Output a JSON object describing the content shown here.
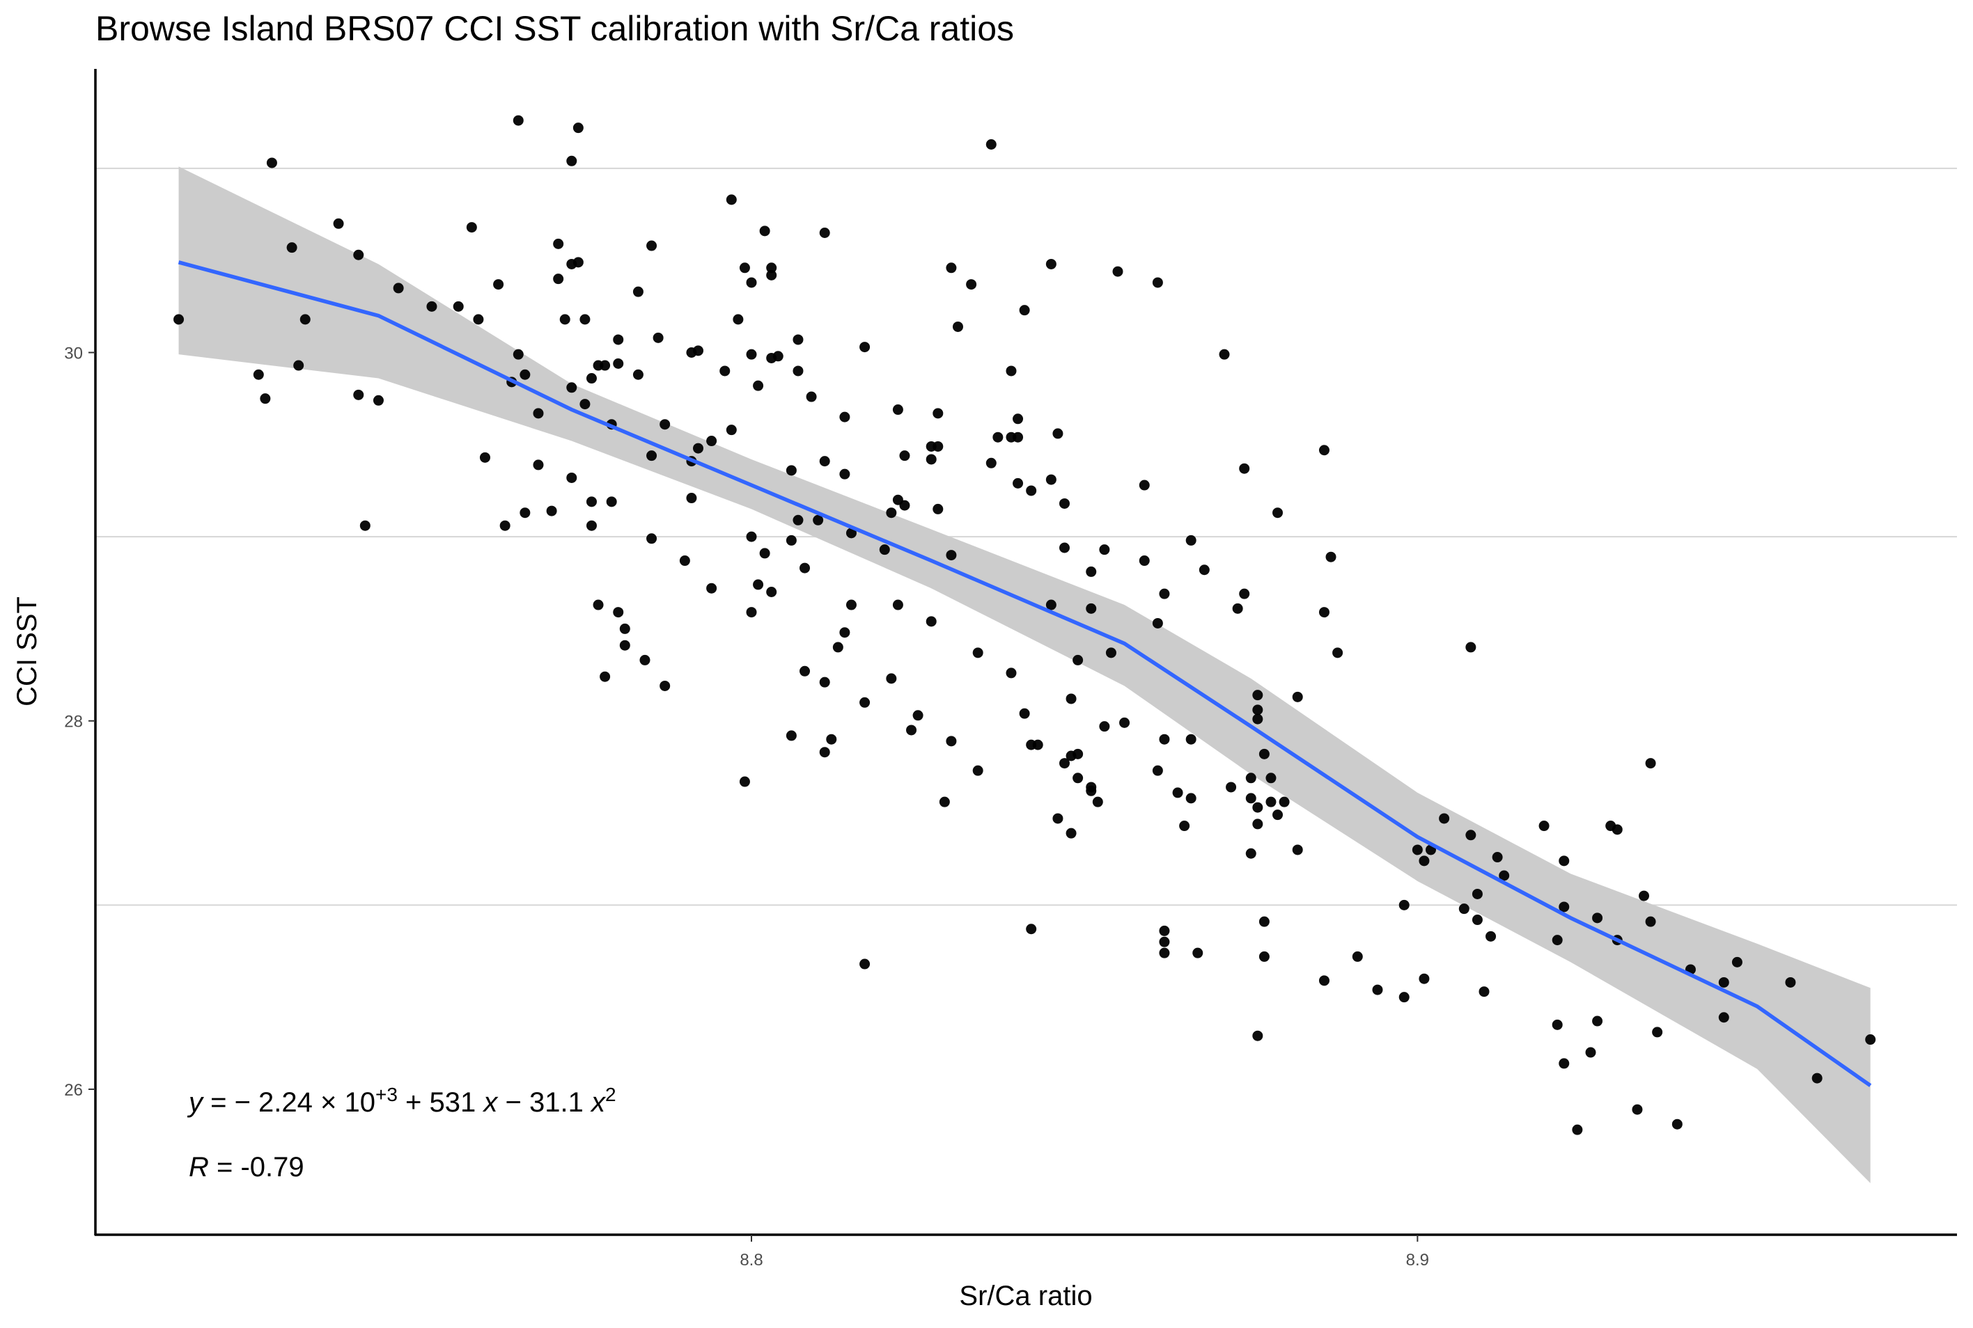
{
  "chart_data": {
    "type": "scatter",
    "title": "Browse Island BRS07 CCI SST calibration with Sr/Ca ratios",
    "x_label": "Sr/Ca ratio",
    "y_label": "CCI SST",
    "xlim": [
      8.7015,
      8.981
    ],
    "ylim": [
      25.21,
      31.54
    ],
    "xticks": [
      8.8,
      8.9
    ],
    "yticks": [
      26,
      28,
      30
    ],
    "grid_y": [
      27,
      29,
      31
    ],
    "color": "#000000",
    "x": [
      8.714,
      8.726,
      8.727,
      8.728,
      8.731,
      8.732,
      8.733,
      8.738,
      8.741,
      8.741,
      8.742,
      8.744,
      8.747,
      8.752,
      8.756,
      8.758,
      8.759,
      8.76,
      8.762,
      8.763,
      8.764,
      8.765,
      8.765,
      8.766,
      8.766,
      8.768,
      8.768,
      8.77,
      8.771,
      8.771,
      8.772,
      8.773,
      8.773,
      8.773,
      8.774,
      8.774,
      8.773,
      8.775,
      8.775,
      8.776,
      8.776,
      8.776,
      8.777,
      8.777,
      8.778,
      8.778,
      8.779,
      8.779,
      8.78,
      8.78,
      8.78,
      8.781,
      8.781,
      8.783,
      8.783,
      8.784,
      8.785,
      8.785,
      8.785,
      8.786,
      8.787,
      8.787,
      8.79,
      8.791,
      8.791,
      8.791,
      8.792,
      8.792,
      8.794,
      8.794,
      8.796,
      8.797,
      8.797,
      8.798,
      8.799,
      8.799,
      8.8,
      8.8,
      8.8,
      8.8,
      8.801,
      8.801,
      8.802,
      8.802,
      8.803,
      8.803,
      8.803,
      8.803,
      8.804,
      8.806,
      8.806,
      8.806,
      8.807,
      8.807,
      8.807,
      8.808,
      8.808,
      8.809,
      8.81,
      8.811,
      8.811,
      8.811,
      8.811,
      8.812,
      8.813,
      8.814,
      8.814,
      8.814,
      8.815,
      8.815,
      8.817,
      8.817,
      8.817,
      8.82,
      8.821,
      8.821,
      8.822,
      8.822,
      8.822,
      8.823,
      8.823,
      8.824,
      8.825,
      8.827,
      8.827,
      8.827,
      8.828,
      8.828,
      8.828,
      8.829,
      8.83,
      8.83,
      8.83,
      8.831,
      8.833,
      8.834,
      8.834,
      8.836,
      8.836,
      8.837,
      8.839,
      8.839,
      8.839,
      8.84,
      8.84,
      8.84,
      8.841,
      8.841,
      8.842,
      8.842,
      8.842,
      8.843,
      8.845,
      8.845,
      8.845,
      8.846,
      8.846,
      8.847,
      8.847,
      8.847,
      8.848,
      8.848,
      8.848,
      8.849,
      8.849,
      8.849,
      8.851,
      8.851,
      8.851,
      8.851,
      8.852,
      8.853,
      8.853,
      8.854,
      8.855,
      8.856,
      8.859,
      8.859,
      8.861,
      8.861,
      8.861,
      8.862,
      8.862,
      8.862,
      8.862,
      8.862,
      8.864,
      8.865,
      8.866,
      8.866,
      8.866,
      8.867,
      8.868,
      8.871,
      8.872,
      8.873,
      8.874,
      8.874,
      8.875,
      8.875,
      8.875,
      8.876,
      8.876,
      8.876,
      8.876,
      8.876,
      8.876,
      8.877,
      8.877,
      8.877,
      8.878,
      8.878,
      8.879,
      8.879,
      8.88,
      8.882,
      8.882,
      8.886,
      8.886,
      8.886,
      8.887,
      8.888,
      8.891,
      8.894,
      8.898,
      8.898,
      8.9,
      8.901,
      8.901,
      8.902,
      8.904,
      8.907,
      8.908,
      8.908,
      8.909,
      8.909,
      8.91,
      8.911,
      8.912,
      8.913,
      8.919,
      8.921,
      8.921,
      8.922,
      8.922,
      8.922,
      8.924,
      8.926,
      8.927,
      8.927,
      8.929,
      8.93,
      8.93,
      8.933,
      8.934,
      8.935,
      8.935,
      8.936,
      8.939,
      8.941,
      8.946,
      8.946,
      8.948,
      8.956,
      8.96,
      8.968
    ],
    "values": [
      30.18,
      29.88,
      29.75,
      31.03,
      30.57,
      29.93,
      30.18,
      30.7,
      30.53,
      29.77,
      29.06,
      29.74,
      30.35,
      30.25,
      30.25,
      30.68,
      30.18,
      29.43,
      30.37,
      29.06,
      29.84,
      31.26,
      29.99,
      29.88,
      29.13,
      29.67,
      29.39,
      29.14,
      30.59,
      30.4,
      30.18,
      29.32,
      31.04,
      30.48,
      31.22,
      30.49,
      29.81,
      30.18,
      29.72,
      29.86,
      29.19,
      29.06,
      29.93,
      28.63,
      28.24,
      29.93,
      29.61,
      29.19,
      29.94,
      28.59,
      30.07,
      28.5,
      28.41,
      30.33,
      29.88,
      28.33,
      30.58,
      29.44,
      28.99,
      30.08,
      28.19,
      29.61,
      28.87,
      30.0,
      29.21,
      29.41,
      30.01,
      29.48,
      29.52,
      28.72,
      29.9,
      30.83,
      29.58,
      30.18,
      30.46,
      27.67,
      29.99,
      28.59,
      30.38,
      29.0,
      29.82,
      28.74,
      30.66,
      28.91,
      30.46,
      30.42,
      29.97,
      28.7,
      29.98,
      29.36,
      28.98,
      27.92,
      30.07,
      29.9,
      29.09,
      28.83,
      28.27,
      29.76,
      29.09,
      30.65,
      29.41,
      28.21,
      27.83,
      27.9,
      28.4,
      29.65,
      29.34,
      28.48,
      29.02,
      28.63,
      30.03,
      28.1,
      26.68,
      28.93,
      28.23,
      29.13,
      29.69,
      29.2,
      28.63,
      29.17,
      29.44,
      27.95,
      28.03,
      29.49,
      29.42,
      28.54,
      29.15,
      29.67,
      29.49,
      27.56,
      30.46,
      28.9,
      27.89,
      30.14,
      30.37,
      28.37,
      27.73,
      31.13,
      29.4,
      29.54,
      29.9,
      29.54,
      28.26,
      29.64,
      29.54,
      29.29,
      30.23,
      28.04,
      29.25,
      27.87,
      26.87,
      27.87,
      30.48,
      29.31,
      28.63,
      29.56,
      27.47,
      29.18,
      28.94,
      27.77,
      27.81,
      28.12,
      27.39,
      28.33,
      27.82,
      27.69,
      28.81,
      28.61,
      27.64,
      27.62,
      27.56,
      27.97,
      28.93,
      28.37,
      30.44,
      27.99,
      29.28,
      28.87,
      28.53,
      30.38,
      27.73,
      28.69,
      27.9,
      26.86,
      26.8,
      26.74,
      27.61,
      27.43,
      28.98,
      27.9,
      27.58,
      26.74,
      28.82,
      29.99,
      27.64,
      28.61,
      29.37,
      28.69,
      27.69,
      27.58,
      27.28,
      28.14,
      28.01,
      27.53,
      26.29,
      28.06,
      27.44,
      26.91,
      27.82,
      26.72,
      27.69,
      27.56,
      29.13,
      27.49,
      27.56,
      27.3,
      28.13,
      29.47,
      28.59,
      26.59,
      28.89,
      28.37,
      26.72,
      26.54,
      27.0,
      26.5,
      27.3,
      27.24,
      26.6,
      27.3,
      27.47,
      26.98,
      28.4,
      27.38,
      27.06,
      26.92,
      26.53,
      26.83,
      27.26,
      27.16,
      27.43,
      26.81,
      26.35,
      27.24,
      26.99,
      26.14,
      25.78,
      26.2,
      26.93,
      26.37,
      27.43,
      27.41,
      26.81,
      25.89,
      27.05,
      27.77,
      26.91,
      26.31,
      25.81,
      26.65,
      26.58,
      26.39,
      26.69,
      26.58,
      26.06,
      26.27
    ],
    "fit": {
      "color": "#3366ff",
      "band_color": "#cccccc",
      "x": [
        8.714,
        8.744,
        8.773,
        8.8,
        8.827,
        8.856,
        8.875,
        8.9,
        8.923,
        8.951,
        8.968
      ],
      "values": [
        30.49,
        30.2,
        29.69,
        29.28,
        28.87,
        28.42,
        27.97,
        27.37,
        26.93,
        26.45,
        26.02
      ],
      "lower": [
        29.99,
        29.86,
        29.52,
        29.15,
        28.72,
        28.19,
        27.71,
        27.13,
        26.69,
        26.11,
        25.49
      ],
      "upper": [
        31.01,
        30.48,
        29.83,
        29.42,
        29.04,
        28.63,
        28.23,
        27.61,
        27.17,
        26.79,
        26.55
      ]
    },
    "equation": [
      {
        "text": "y",
        "italic": true
      },
      {
        "text": " = − 2.24 × 10"
      },
      {
        "text": "+3",
        "sup": true
      },
      {
        "text": " + 531 "
      },
      {
        "text": "x",
        "italic": true
      },
      {
        "text": " − 31.1 "
      },
      {
        "text": "x",
        "italic": true
      },
      {
        "text": "2",
        "sup": true
      }
    ],
    "correlation": [
      {
        "text": "R",
        "italic": true
      },
      {
        "text": " = -0.79"
      }
    ]
  }
}
